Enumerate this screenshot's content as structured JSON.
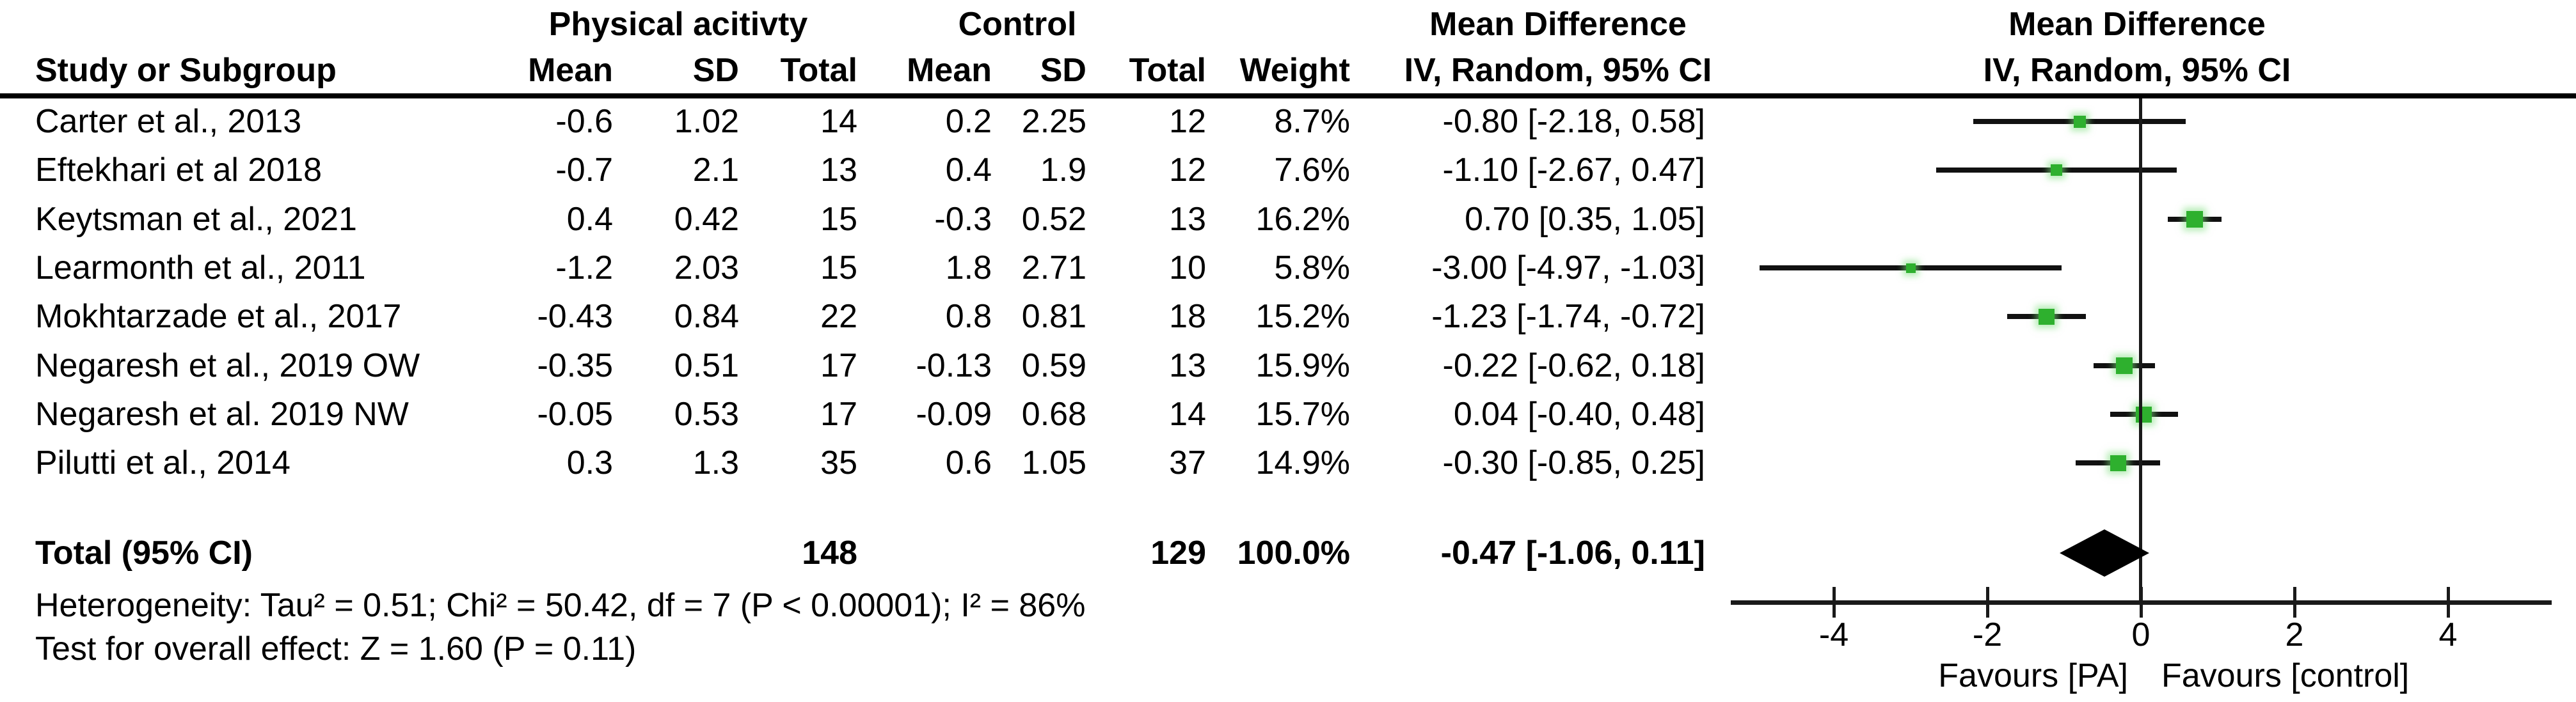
{
  "table": {
    "header": {
      "study_col": "Study or Subgroup",
      "group1": "Physical acitivty",
      "group2": "Control",
      "effect_line1": "Mean Difference",
      "effect_line2": "IV, Random, 95% CI",
      "plot_line1": "Mean Difference",
      "plot_line2": "IV, Random, 95% CI",
      "sub_cols": [
        "Mean",
        "SD",
        "Total",
        "Mean",
        "SD",
        "Total",
        "Weight"
      ]
    }
  },
  "chart_data": {
    "type": "scatter",
    "subtype": "forest_plot_mean_difference_random_effects",
    "effect_measure": "Mean Difference IV, Random, 95% CI",
    "studies": [
      {
        "name": "Carter et al., 2013",
        "pa_mean": "-0.6",
        "pa_sd": "1.02",
        "pa_total": "14",
        "ctrl_mean": "0.2",
        "ctrl_sd": "2.25",
        "ctrl_total": "12",
        "weight": "8.7%",
        "weight_pct": 8.7,
        "ci_label": "-0.80 [-2.18, 0.58]",
        "md": -0.8,
        "ci_low": -2.18,
        "ci_high": 0.58
      },
      {
        "name": "Eftekhari et al 2018",
        "pa_mean": "-0.7",
        "pa_sd": "2.1",
        "pa_total": "13",
        "ctrl_mean": "0.4",
        "ctrl_sd": "1.9",
        "ctrl_total": "12",
        "weight": "7.6%",
        "weight_pct": 7.6,
        "ci_label": "-1.10 [-2.67, 0.47]",
        "md": -1.1,
        "ci_low": -2.67,
        "ci_high": 0.47
      },
      {
        "name": "Keytsman et al., 2021",
        "pa_mean": "0.4",
        "pa_sd": "0.42",
        "pa_total": "15",
        "ctrl_mean": "-0.3",
        "ctrl_sd": "0.52",
        "ctrl_total": "13",
        "weight": "16.2%",
        "weight_pct": 16.2,
        "ci_label": "0.70 [0.35, 1.05]",
        "md": 0.7,
        "ci_low": 0.35,
        "ci_high": 1.05
      },
      {
        "name": "Learmonth et al., 2011",
        "pa_mean": "-1.2",
        "pa_sd": "2.03",
        "pa_total": "15",
        "ctrl_mean": "1.8",
        "ctrl_sd": "2.71",
        "ctrl_total": "10",
        "weight": "5.8%",
        "weight_pct": 5.8,
        "ci_label": "-3.00 [-4.97, -1.03]",
        "md": -3.0,
        "ci_low": -4.97,
        "ci_high": -1.03
      },
      {
        "name": "Mokhtarzade et al., 2017",
        "pa_mean": "-0.43",
        "pa_sd": "0.84",
        "pa_total": "22",
        "ctrl_mean": "0.8",
        "ctrl_sd": "0.81",
        "ctrl_total": "18",
        "weight": "15.2%",
        "weight_pct": 15.2,
        "ci_label": "-1.23 [-1.74, -0.72]",
        "md": -1.23,
        "ci_low": -1.74,
        "ci_high": -0.72
      },
      {
        "name": "Negaresh et al., 2019 OW",
        "pa_mean": "-0.35",
        "pa_sd": "0.51",
        "pa_total": "17",
        "ctrl_mean": "-0.13",
        "ctrl_sd": "0.59",
        "ctrl_total": "13",
        "weight": "15.9%",
        "weight_pct": 15.9,
        "ci_label": "-0.22 [-0.62, 0.18]",
        "md": -0.22,
        "ci_low": -0.62,
        "ci_high": 0.18
      },
      {
        "name": "Negaresh et al. 2019 NW",
        "pa_mean": "-0.05",
        "pa_sd": "0.53",
        "pa_total": "17",
        "ctrl_mean": "-0.09",
        "ctrl_sd": "0.68",
        "ctrl_total": "14",
        "weight": "15.7%",
        "weight_pct": 15.7,
        "ci_label": "0.04 [-0.40, 0.48]",
        "md": 0.04,
        "ci_low": -0.4,
        "ci_high": 0.48
      },
      {
        "name": "Pilutti et al., 2014",
        "pa_mean": "0.3",
        "pa_sd": "1.3",
        "pa_total": "35",
        "ctrl_mean": "0.6",
        "ctrl_sd": "1.05",
        "ctrl_total": "37",
        "weight": "14.9%",
        "weight_pct": 14.9,
        "ci_label": "-0.30 [-0.85, 0.25]",
        "md": -0.3,
        "ci_low": -0.85,
        "ci_high": 0.25
      }
    ],
    "total": {
      "label": "Total (95% CI)",
      "pa_total": "148",
      "ctrl_total": "129",
      "weight": "100.0%",
      "ci_label": "-0.47 [-1.06, 0.11]",
      "md": -0.47,
      "ci_low": -1.06,
      "ci_high": 0.11
    },
    "footer": {
      "heterogeneity": "Heterogeneity: Tau² = 0.51; Chi² = 50.42, df = 7 (P < 0.00001); I² = 86%",
      "overall_effect": "Test for overall effect: Z = 1.60 (P = 0.11)"
    },
    "axis": {
      "ticks": [
        -4,
        -2,
        0,
        2,
        4
      ],
      "xlim": [
        -5.35,
        5.35
      ],
      "favours_left": "Favours [PA]",
      "favours_right": "Favours [control]",
      "grid": false,
      "legend": false
    },
    "colors": {
      "marker_green": "#2EB02E",
      "marker_glow": "#78DC78",
      "diamond_black": "#000000",
      "line_black": "#111111"
    }
  }
}
